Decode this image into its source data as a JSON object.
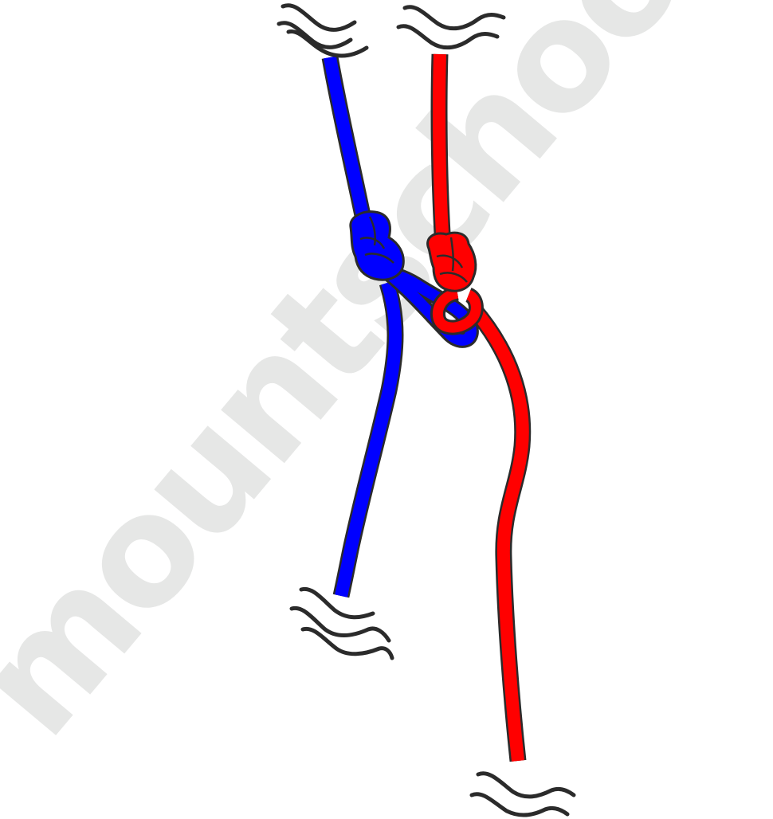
{
  "watermark": {
    "text": "mountschool.ru",
    "color": "#e6e7e6"
  },
  "colors": {
    "rope_blue": "#0000ff",
    "rope_red": "#ff0000",
    "outline": "#2b2b2b",
    "break_mark": "#2b2b2b",
    "background": "#ffffff"
  },
  "elements": {
    "ropes": [
      "blue-rope",
      "red-rope"
    ],
    "knots": [
      "blue-overhand-knot",
      "red-overhand-knot"
    ],
    "break_marks": [
      "break-mark-blue-top",
      "break-mark-red-top",
      "break-mark-blue-bottom",
      "break-mark-red-bottom"
    ]
  }
}
